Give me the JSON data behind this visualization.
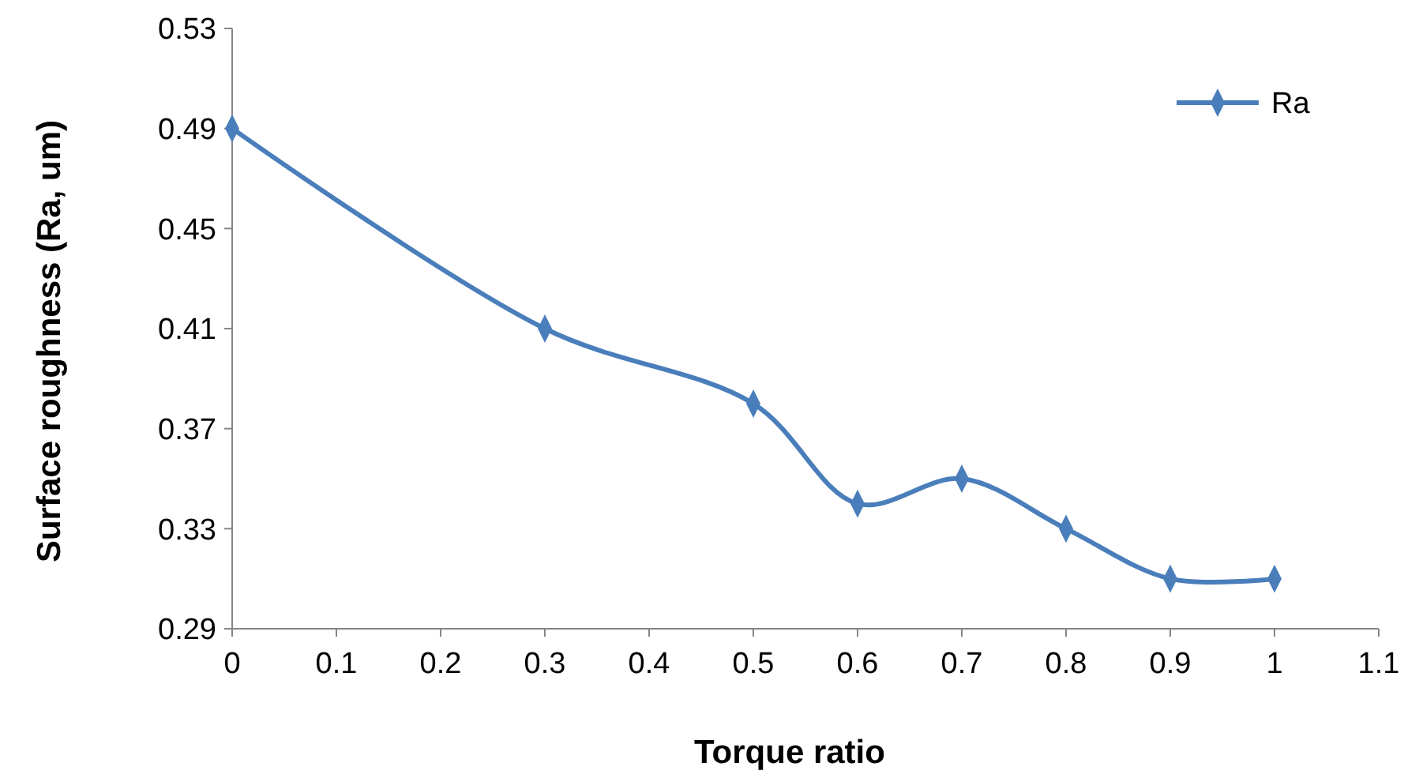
{
  "chart_data": {
    "type": "line",
    "xlabel": "Torque ratio",
    "ylabel": "Surface roughness  (Ra, um)",
    "x": [
      0,
      0.3,
      0.5,
      0.6,
      0.7,
      0.8,
      0.9,
      1
    ],
    "series": [
      {
        "name": "Ra",
        "color": "#4a7ebb",
        "values": [
          0.49,
          0.41,
          0.38,
          0.34,
          0.35,
          0.33,
          0.31,
          0.31
        ]
      }
    ],
    "xlim": [
      0,
      1.1
    ],
    "xticks": [
      0,
      0.1,
      0.2,
      0.3,
      0.4,
      0.5,
      0.6,
      0.7,
      0.8,
      0.9,
      1,
      1.1
    ],
    "ylim": [
      0.29,
      0.53
    ],
    "yticks": [
      0.29,
      0.33,
      0.37,
      0.41,
      0.45,
      0.49,
      0.53
    ],
    "grid": false,
    "legend": "top right",
    "marker": "diamond",
    "line_style": "solid"
  }
}
